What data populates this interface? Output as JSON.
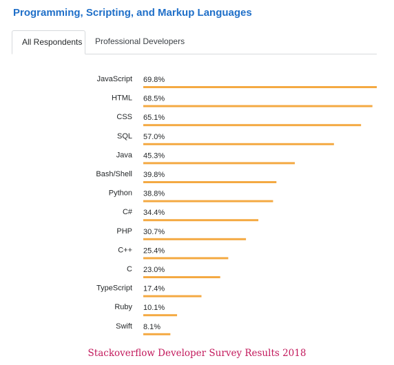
{
  "header": {
    "title": "Programming, Scripting, and Markup Languages"
  },
  "tabs": [
    {
      "label": "All Respondents",
      "active": true
    },
    {
      "label": "Professional Developers",
      "active": false
    }
  ],
  "caption": "Stackoverflow Developer Survey Results 2018",
  "colors": {
    "title": "#1f6fc8",
    "bar": "#f4a942",
    "caption": "#c2185b"
  },
  "chart_data": {
    "type": "bar",
    "orientation": "horizontal",
    "categories": [
      "JavaScript",
      "HTML",
      "CSS",
      "SQL",
      "Java",
      "Bash/Shell",
      "Python",
      "C#",
      "PHP",
      "C++",
      "C",
      "TypeScript",
      "Ruby",
      "Swift"
    ],
    "values": [
      69.8,
      68.5,
      65.1,
      57.0,
      45.3,
      39.8,
      38.8,
      34.4,
      30.7,
      25.4,
      23.0,
      17.4,
      10.1,
      8.1
    ],
    "value_labels": [
      "69.8%",
      "68.5%",
      "65.1%",
      "57.0%",
      "45.3%",
      "39.8%",
      "38.8%",
      "34.4%",
      "30.7%",
      "25.4%",
      "23.0%",
      "17.4%",
      "10.1%",
      "8.1%"
    ],
    "xlim": [
      0,
      69.8
    ],
    "grid": false
  }
}
